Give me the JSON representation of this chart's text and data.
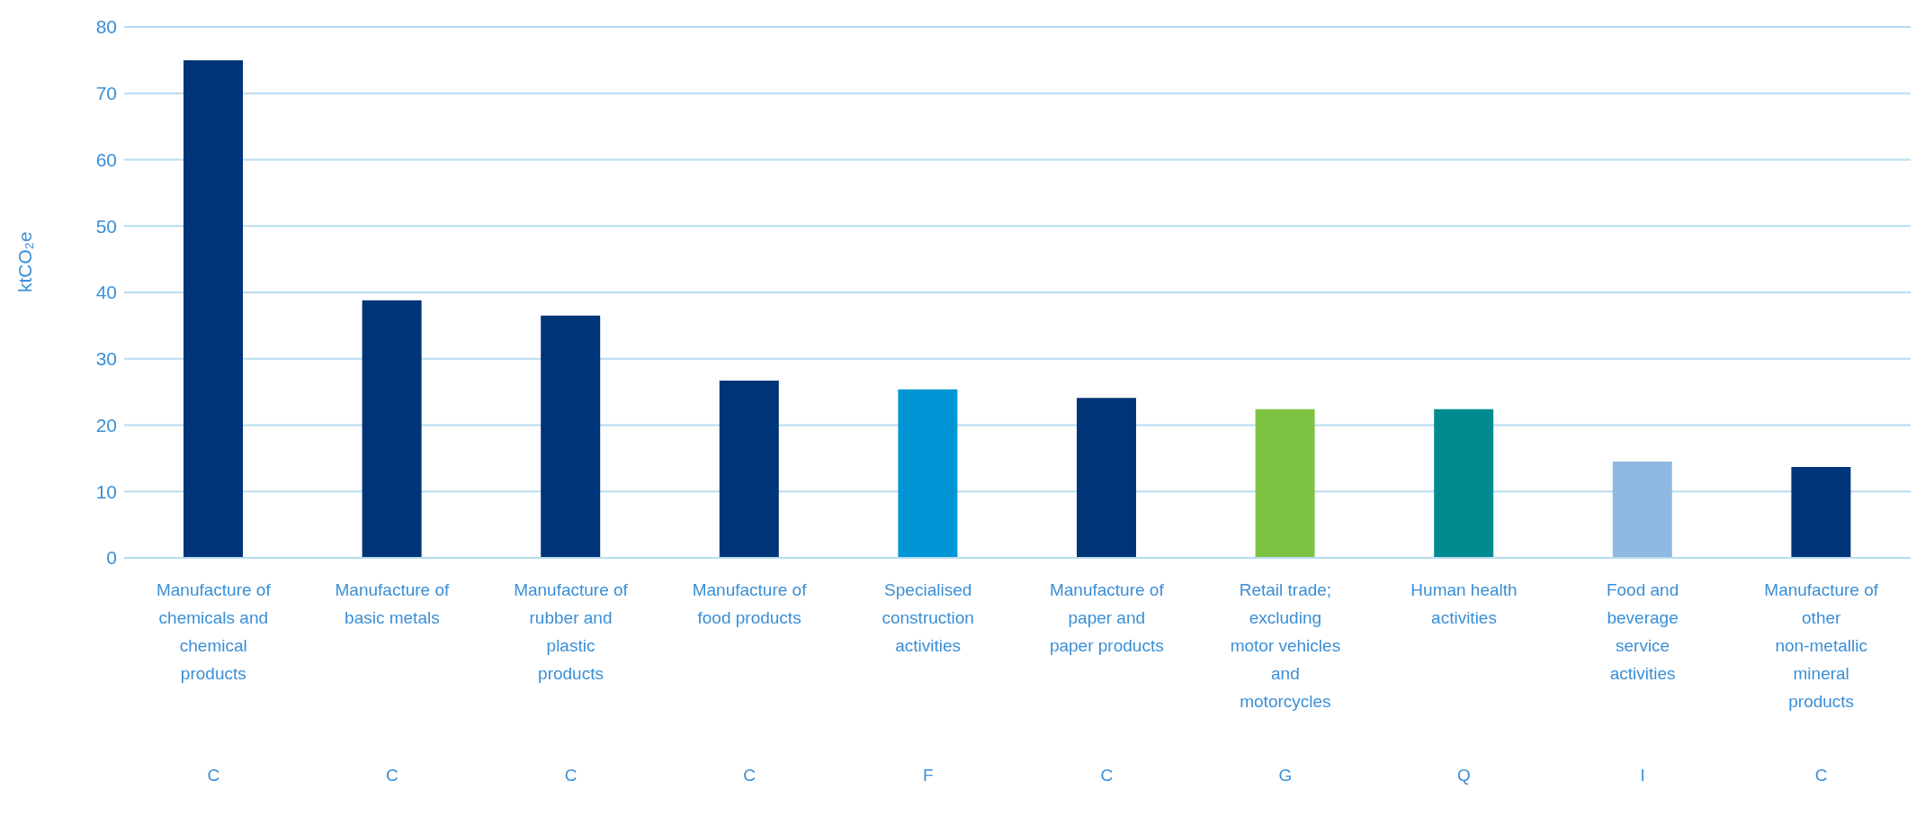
{
  "chart_data": {
    "type": "bar",
    "ylabel": "ktCO₂e",
    "categories": [
      "Manufacture of chemicals and chemical products",
      "Manufacture of basic metals",
      "Manufacture of rubber and plastic products",
      "Manufacture of food products",
      "Specialised construction activities",
      "Manufacture of paper and paper products",
      "Retail trade; excluding motor vehicles and motorcycles",
      "Human health activities",
      "Food and beverage service activities",
      "Manufacture of other non-metallic mineral products"
    ],
    "values": [
      75,
      38.8,
      36.5,
      26.7,
      25.4,
      24.1,
      22.4,
      22.4,
      14.5,
      13.7
    ],
    "colors": [
      "#003478",
      "#003478",
      "#003478",
      "#003478",
      "#0096d6",
      "#003478",
      "#7dc242",
      "#008b91",
      "#8fb8e0",
      "#003478"
    ],
    "annotations": [
      "C",
      "C",
      "C",
      "C",
      "F",
      "C",
      "G",
      "Q",
      "I",
      "C"
    ],
    "ylim": [
      0,
      80
    ],
    "yticks": [
      0,
      10,
      20,
      30,
      40,
      50,
      60,
      70,
      80
    ],
    "grid": "y"
  }
}
